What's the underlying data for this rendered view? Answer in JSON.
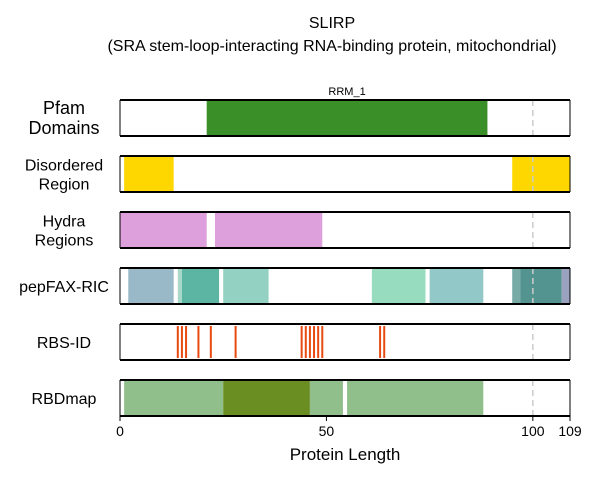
{
  "chart_data": {
    "type": "bar",
    "title": "SLIRP",
    "subtitle": "(SRA stem-loop-interacting RNA-binding protein, mitochondrial)",
    "xlabel": "Protein Length",
    "xlim": [
      0,
      109
    ],
    "xticks": [
      {
        "value": 0,
        "label": "0"
      },
      {
        "value": 50,
        "label": "50"
      },
      {
        "value": 100,
        "label": "100"
      },
      {
        "value": 109,
        "label": "109"
      }
    ],
    "reference_line": 100,
    "tracks": [
      {
        "key": "pfam",
        "label_lines": [
          "Pfam",
          "Domains"
        ],
        "segments": [
          {
            "start": 21,
            "end": 89,
            "color": "#3a8f28",
            "label": "RRM_1"
          }
        ]
      },
      {
        "key": "disorder",
        "label_lines": [
          "Disordered",
          "Region"
        ],
        "segments": [
          {
            "start": 1,
            "end": 13,
            "color": "#ffd700"
          },
          {
            "start": 95,
            "end": 109,
            "color": "#ffd700"
          }
        ]
      },
      {
        "key": "hydra",
        "label_lines": [
          "Hydra",
          "Regions"
        ],
        "segments": [
          {
            "start": 0,
            "end": 21,
            "color": "#dda0dd"
          },
          {
            "start": 23,
            "end": 49,
            "color": "#dda0dd"
          }
        ]
      },
      {
        "key": "pepfax",
        "label_lines": [
          "pepFAX-RIC"
        ],
        "segments": [
          {
            "start": 2,
            "end": 13,
            "color": "#9ab9c8"
          },
          {
            "start": 14,
            "end": 15,
            "color": "#a8d8c8"
          },
          {
            "start": 15,
            "end": 24,
            "color": "#5bb5a2"
          },
          {
            "start": 25,
            "end": 36,
            "color": "#93d2c2"
          },
          {
            "start": 61,
            "end": 74,
            "color": "#98dcc0"
          },
          {
            "start": 75,
            "end": 88,
            "color": "#92c8c8"
          },
          {
            "start": 95,
            "end": 97,
            "color": "#78aaa6"
          },
          {
            "start": 97,
            "end": 107,
            "color": "#549490"
          },
          {
            "start": 107,
            "end": 109,
            "color": "#9aa2c0"
          }
        ]
      },
      {
        "key": "rbsid",
        "label_lines": [
          "RBS-ID"
        ],
        "lines": [
          14,
          15,
          16,
          19,
          22,
          28,
          44,
          45,
          46,
          47,
          48,
          49,
          63,
          64
        ],
        "line_color": "#e84a10"
      },
      {
        "key": "rbdmap",
        "label_lines": [
          "RBDmap"
        ],
        "segments": [
          {
            "start": 1,
            "end": 25,
            "color": "#90bf8c"
          },
          {
            "start": 25,
            "end": 46,
            "color": "#6b8e23"
          },
          {
            "start": 46,
            "end": 54,
            "color": "#90bf8c"
          },
          {
            "start": 55,
            "end": 88,
            "color": "#90bf8c"
          }
        ]
      }
    ]
  }
}
